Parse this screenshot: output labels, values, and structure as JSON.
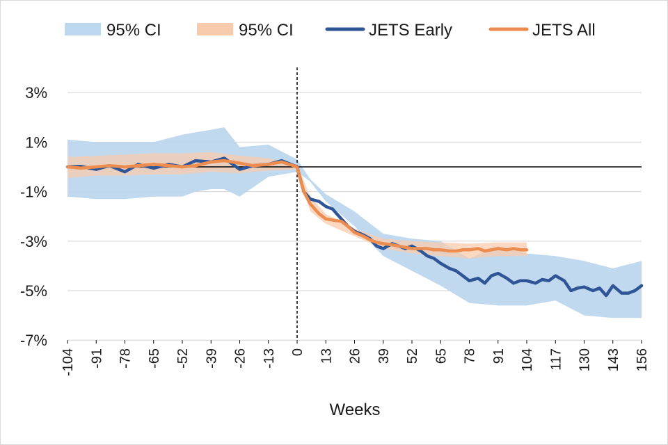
{
  "chart_data": {
    "type": "line",
    "title": "",
    "xlabel": "Weeks",
    "ylabel": "",
    "xlim": [
      -104,
      156
    ],
    "ylim": [
      -7,
      4
    ],
    "y_ticks": [
      3,
      1,
      -1,
      -3,
      -5,
      -7
    ],
    "y_tick_labels": [
      "3%",
      "1%",
      "-1%",
      "-3%",
      "-5%",
      "-7%"
    ],
    "x_ticks": [
      -104,
      -91,
      -78,
      -65,
      -52,
      -39,
      -26,
      -13,
      0,
      13,
      26,
      39,
      52,
      65,
      78,
      91,
      104,
      117,
      130,
      143,
      156
    ],
    "x_tick_labels": [
      "-104",
      "-91",
      "-78",
      "-65",
      "-52",
      "-39",
      "-26",
      "-13",
      "0",
      "13",
      "26",
      "39",
      "52",
      "65",
      "78",
      "91",
      "104",
      "117",
      "130",
      "143",
      "156"
    ],
    "grid": "horizontal",
    "legend_position": "top",
    "reference_lines": {
      "vertical_x": 0,
      "horizontal_y": 0
    },
    "legend": [
      {
        "label": "95% CI",
        "kind": "band",
        "color": "#bdd7ee"
      },
      {
        "label": "95% CI",
        "kind": "band",
        "color": "#f8cbad"
      },
      {
        "label": "JETS Early",
        "kind": "line",
        "color": "#2f5597"
      },
      {
        "label": "JETS All",
        "kind": "line",
        "color": "#ed8c4f"
      }
    ],
    "series": [
      {
        "name": "JETS Early",
        "color": "#2f5597",
        "x": [
          -104,
          -98,
          -91,
          -85,
          -78,
          -72,
          -65,
          -58,
          -52,
          -46,
          -39,
          -33,
          -26,
          -20,
          -13,
          -7,
          0,
          3,
          6,
          10,
          13,
          16,
          20,
          23,
          26,
          30,
          33,
          36,
          39,
          43,
          46,
          49,
          52,
          56,
          59,
          62,
          65,
          69,
          72,
          75,
          78,
          82,
          85,
          88,
          91,
          95,
          98,
          101,
          104,
          108,
          111,
          114,
          117,
          121,
          124,
          127,
          130,
          134,
          137,
          140,
          143,
          147,
          150,
          153,
          156
        ],
        "y": [
          0.0,
          0.02,
          -0.1,
          0.05,
          -0.2,
          0.1,
          -0.05,
          0.1,
          0.0,
          0.25,
          0.2,
          0.35,
          -0.1,
          0.05,
          0.1,
          0.25,
          0.0,
          -1.0,
          -1.3,
          -1.4,
          -1.6,
          -1.7,
          -2.1,
          -2.4,
          -2.6,
          -2.75,
          -2.9,
          -3.2,
          -3.3,
          -3.1,
          -3.2,
          -3.3,
          -3.2,
          -3.4,
          -3.6,
          -3.7,
          -3.9,
          -4.1,
          -4.2,
          -4.4,
          -4.6,
          -4.5,
          -4.7,
          -4.4,
          -4.3,
          -4.5,
          -4.7,
          -4.6,
          -4.6,
          -4.7,
          -4.55,
          -4.6,
          -4.4,
          -4.6,
          -5.0,
          -4.9,
          -4.85,
          -5.0,
          -4.9,
          -5.2,
          -4.8,
          -5.1,
          -5.1,
          -5.0,
          -4.8
        ]
      },
      {
        "name": "JETS All",
        "color": "#ed8c4f",
        "x": [
          -104,
          -98,
          -91,
          -85,
          -78,
          -72,
          -65,
          -58,
          -52,
          -46,
          -39,
          -33,
          -26,
          -20,
          -13,
          -7,
          0,
          3,
          6,
          10,
          13,
          16,
          20,
          23,
          26,
          30,
          33,
          36,
          39,
          43,
          46,
          49,
          52,
          56,
          59,
          62,
          65,
          69,
          72,
          75,
          78,
          82,
          85,
          88,
          91,
          95,
          98,
          101,
          104
        ],
        "y": [
          0.0,
          -0.05,
          0.0,
          0.05,
          0.0,
          0.05,
          0.1,
          0.05,
          0.0,
          0.05,
          0.2,
          0.25,
          0.15,
          0.05,
          0.1,
          0.2,
          0.0,
          -1.0,
          -1.5,
          -1.9,
          -2.1,
          -2.15,
          -2.2,
          -2.4,
          -2.65,
          -2.8,
          -2.95,
          -3.05,
          -3.1,
          -3.15,
          -3.2,
          -3.25,
          -3.3,
          -3.3,
          -3.3,
          -3.35,
          -3.35,
          -3.4,
          -3.4,
          -3.35,
          -3.35,
          -3.3,
          -3.4,
          -3.35,
          -3.3,
          -3.35,
          -3.3,
          -3.35,
          -3.35
        ]
      },
      {
        "name": "95% CI",
        "color": "#bdd7ee",
        "x": [
          -104,
          -91,
          -78,
          -65,
          -52,
          -46,
          -39,
          -33,
          -26,
          -13,
          0,
          6,
          13,
          26,
          39,
          52,
          65,
          78,
          91,
          104,
          117,
          130,
          143,
          156
        ],
        "lower": [
          -1.2,
          -1.3,
          -1.3,
          -1.2,
          -1.2,
          -1.0,
          -0.9,
          -0.9,
          -1.2,
          -0.4,
          -0.2,
          -0.6,
          -1.4,
          -2.4,
          -3.6,
          -4.2,
          -4.8,
          -5.5,
          -5.6,
          -5.6,
          -5.4,
          -6.0,
          -6.1,
          -6.1
        ],
        "upper": [
          1.1,
          1.0,
          1.0,
          1.0,
          1.3,
          1.4,
          1.5,
          1.6,
          0.8,
          0.9,
          0.3,
          -0.5,
          -1.1,
          -1.8,
          -2.7,
          -2.9,
          -3.0,
          -3.7,
          -3.2,
          -3.5,
          -3.6,
          -3.8,
          -4.1,
          -3.8
        ]
      },
      {
        "name": "95% CI",
        "color": "#f8cbad",
        "x": [
          -104,
          -91,
          -78,
          -65,
          -52,
          -39,
          -26,
          -13,
          0,
          6,
          13,
          26,
          39,
          52,
          65,
          78,
          91,
          104
        ],
        "lower": [
          -0.45,
          -0.35,
          -0.35,
          -0.3,
          -0.3,
          -0.2,
          -0.25,
          -0.15,
          -0.1,
          -1.8,
          -2.3,
          -2.8,
          -3.3,
          -3.5,
          -3.6,
          -3.7,
          -3.6,
          -3.6
        ],
        "upper": [
          0.4,
          0.45,
          0.5,
          0.55,
          0.55,
          0.6,
          0.45,
          0.35,
          0.1,
          -1.2,
          -1.9,
          -2.5,
          -2.9,
          -3.0,
          -3.05,
          -3.1,
          -3.05,
          -3.05
        ]
      }
    ]
  }
}
